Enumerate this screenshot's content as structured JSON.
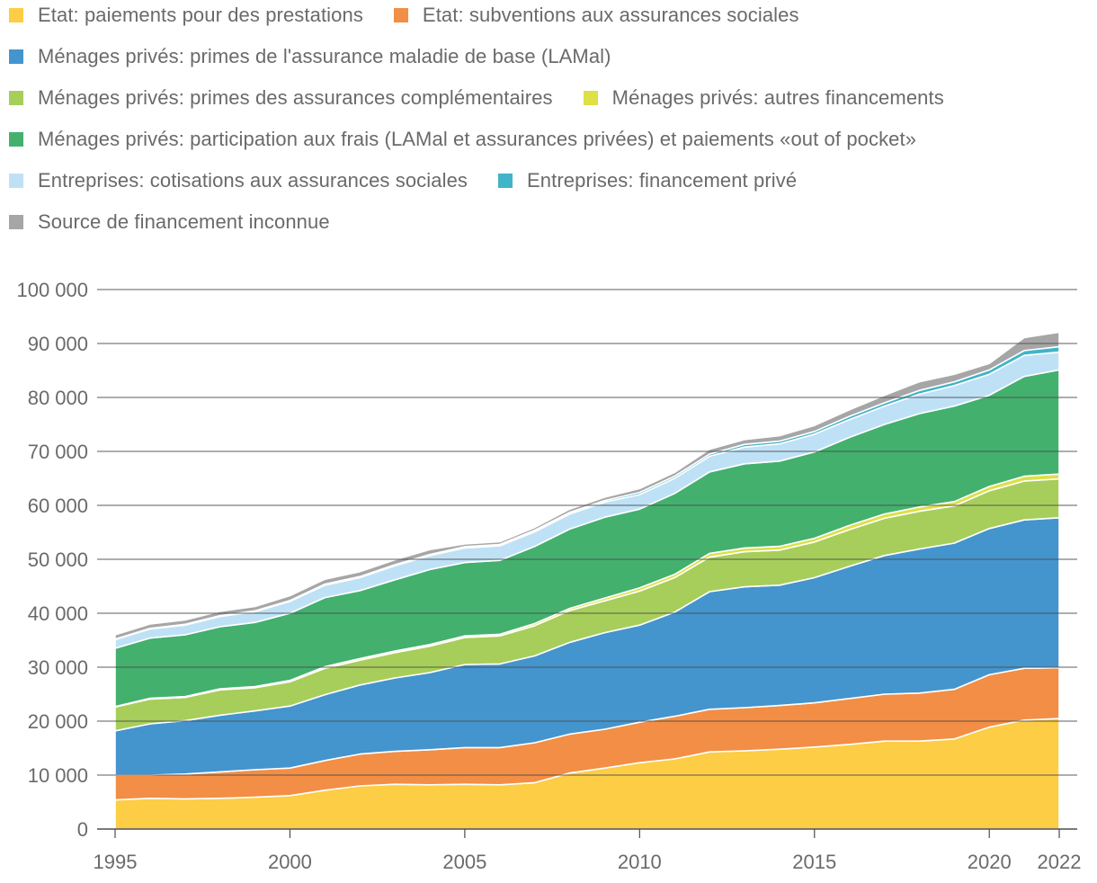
{
  "chart_data": {
    "type": "area",
    "stacked": true,
    "title": "",
    "xlabel": "",
    "ylabel": "",
    "xlim": [
      1995,
      2022
    ],
    "ylim": [
      0,
      100000
    ],
    "grid": true,
    "legend_position": "top",
    "x": [
      1995,
      1996,
      1997,
      1998,
      1999,
      2000,
      2001,
      2002,
      2003,
      2004,
      2005,
      2006,
      2007,
      2008,
      2009,
      2010,
      2011,
      2012,
      2013,
      2014,
      2015,
      2016,
      2017,
      2018,
      2019,
      2020,
      2021,
      2022
    ],
    "x_ticks": [
      "1995",
      "2000",
      "2005",
      "2010",
      "2015",
      "2020",
      "2022"
    ],
    "y_ticks": [
      "0",
      "10 000",
      "20 000",
      "30 000",
      "40 000",
      "50 000",
      "60 000",
      "70 000",
      "80 000",
      "90 000",
      "100 000"
    ],
    "series": [
      {
        "name": "Etat: paiements pour des prestations",
        "color": "#fccd45",
        "values": [
          5400,
          5700,
          5600,
          5700,
          5900,
          6200,
          7200,
          8000,
          8300,
          8200,
          8300,
          8200,
          8600,
          10400,
          11300,
          12300,
          13000,
          14300,
          14500,
          14800,
          15200,
          15700,
          16300,
          16300,
          16700,
          18900,
          20200,
          20500
        ]
      },
      {
        "name": "Etat: subventions aux assurances sociales",
        "color": "#f28e45",
        "values": [
          4600,
          4300,
          4600,
          4900,
          5100,
          5100,
          5500,
          5900,
          6100,
          6500,
          6800,
          6900,
          7400,
          7200,
          7200,
          7500,
          7900,
          7900,
          8000,
          8100,
          8200,
          8500,
          8700,
          8900,
          9200,
          9700,
          9600,
          9400
        ]
      },
      {
        "name": "Ménages privés: primes de l'assurance maladie de base (LAMal)",
        "color": "#4494ce",
        "values": [
          8200,
          9500,
          9900,
          10500,
          10900,
          11500,
          12200,
          12800,
          13600,
          14300,
          15400,
          15500,
          16100,
          17000,
          17900,
          18000,
          19300,
          21800,
          22400,
          22300,
          23200,
          24500,
          25700,
          26700,
          27100,
          27100,
          27500,
          27800
        ]
      },
      {
        "name": "Ménages privés: primes des assurances complémentaires",
        "color": "#a7ce5a",
        "values": [
          4400,
          4600,
          4300,
          4700,
          4300,
          4500,
          4900,
          4600,
          4700,
          4900,
          5000,
          5200,
          5600,
          5900,
          5900,
          6300,
          6400,
          6400,
          6500,
          6500,
          6600,
          6800,
          6900,
          7000,
          6900,
          7000,
          7200,
          7200
        ]
      },
      {
        "name": "Ménages privés: autres financements",
        "color": "#dde046",
        "values": [
          100,
          150,
          150,
          200,
          200,
          250,
          300,
          300,
          300,
          300,
          300,
          300,
          400,
          400,
          500,
          600,
          600,
          700,
          700,
          700,
          700,
          800,
          800,
          800,
          800,
          800,
          900,
          900
        ]
      },
      {
        "name": "Ménages privés: participation aux frais (LAMal et assurances privées) et paiements «out of pocket»",
        "color": "#43b06e",
        "values": [
          10800,
          11150,
          11450,
          11500,
          11900,
          12450,
          12800,
          12600,
          13200,
          13900,
          13600,
          13700,
          14300,
          14700,
          15000,
          14600,
          15000,
          15100,
          15600,
          15800,
          16000,
          16300,
          16600,
          17300,
          17700,
          16900,
          18500,
          19300
        ]
      },
      {
        "name": "Entreprises: cotisations aux assurances sociales",
        "color": "#bfe1f6",
        "values": [
          1600,
          1700,
          1800,
          1900,
          2000,
          2200,
          2300,
          2400,
          2600,
          2600,
          2700,
          2700,
          2700,
          2800,
          2800,
          2700,
          2800,
          2900,
          3100,
          3200,
          3300,
          3300,
          3400,
          3600,
          3800,
          3900,
          3900,
          3300
        ]
      },
      {
        "name": "Entreprises: financement privé",
        "color": "#40b4c8",
        "values": [
          100,
          100,
          150,
          150,
          150,
          150,
          200,
          200,
          200,
          200,
          250,
          250,
          300,
          300,
          300,
          400,
          400,
          400,
          500,
          500,
          500,
          600,
          600,
          700,
          700,
          800,
          900,
          1000
        ]
      },
      {
        "name": "Source de financement inconnue",
        "color": "#a6a6a6",
        "values": [
          800,
          800,
          800,
          800,
          800,
          900,
          900,
          900,
          900,
          900,
          500,
          500,
          500,
          600,
          600,
          700,
          700,
          900,
          900,
          1000,
          1100,
          1200,
          1400,
          1600,
          1400,
          1200,
          2400,
          2700
        ]
      }
    ]
  },
  "legend_rows": [
    [
      0,
      1
    ],
    [
      2
    ],
    [
      3,
      4
    ],
    [
      5
    ],
    [
      6,
      7
    ],
    [
      8
    ]
  ]
}
